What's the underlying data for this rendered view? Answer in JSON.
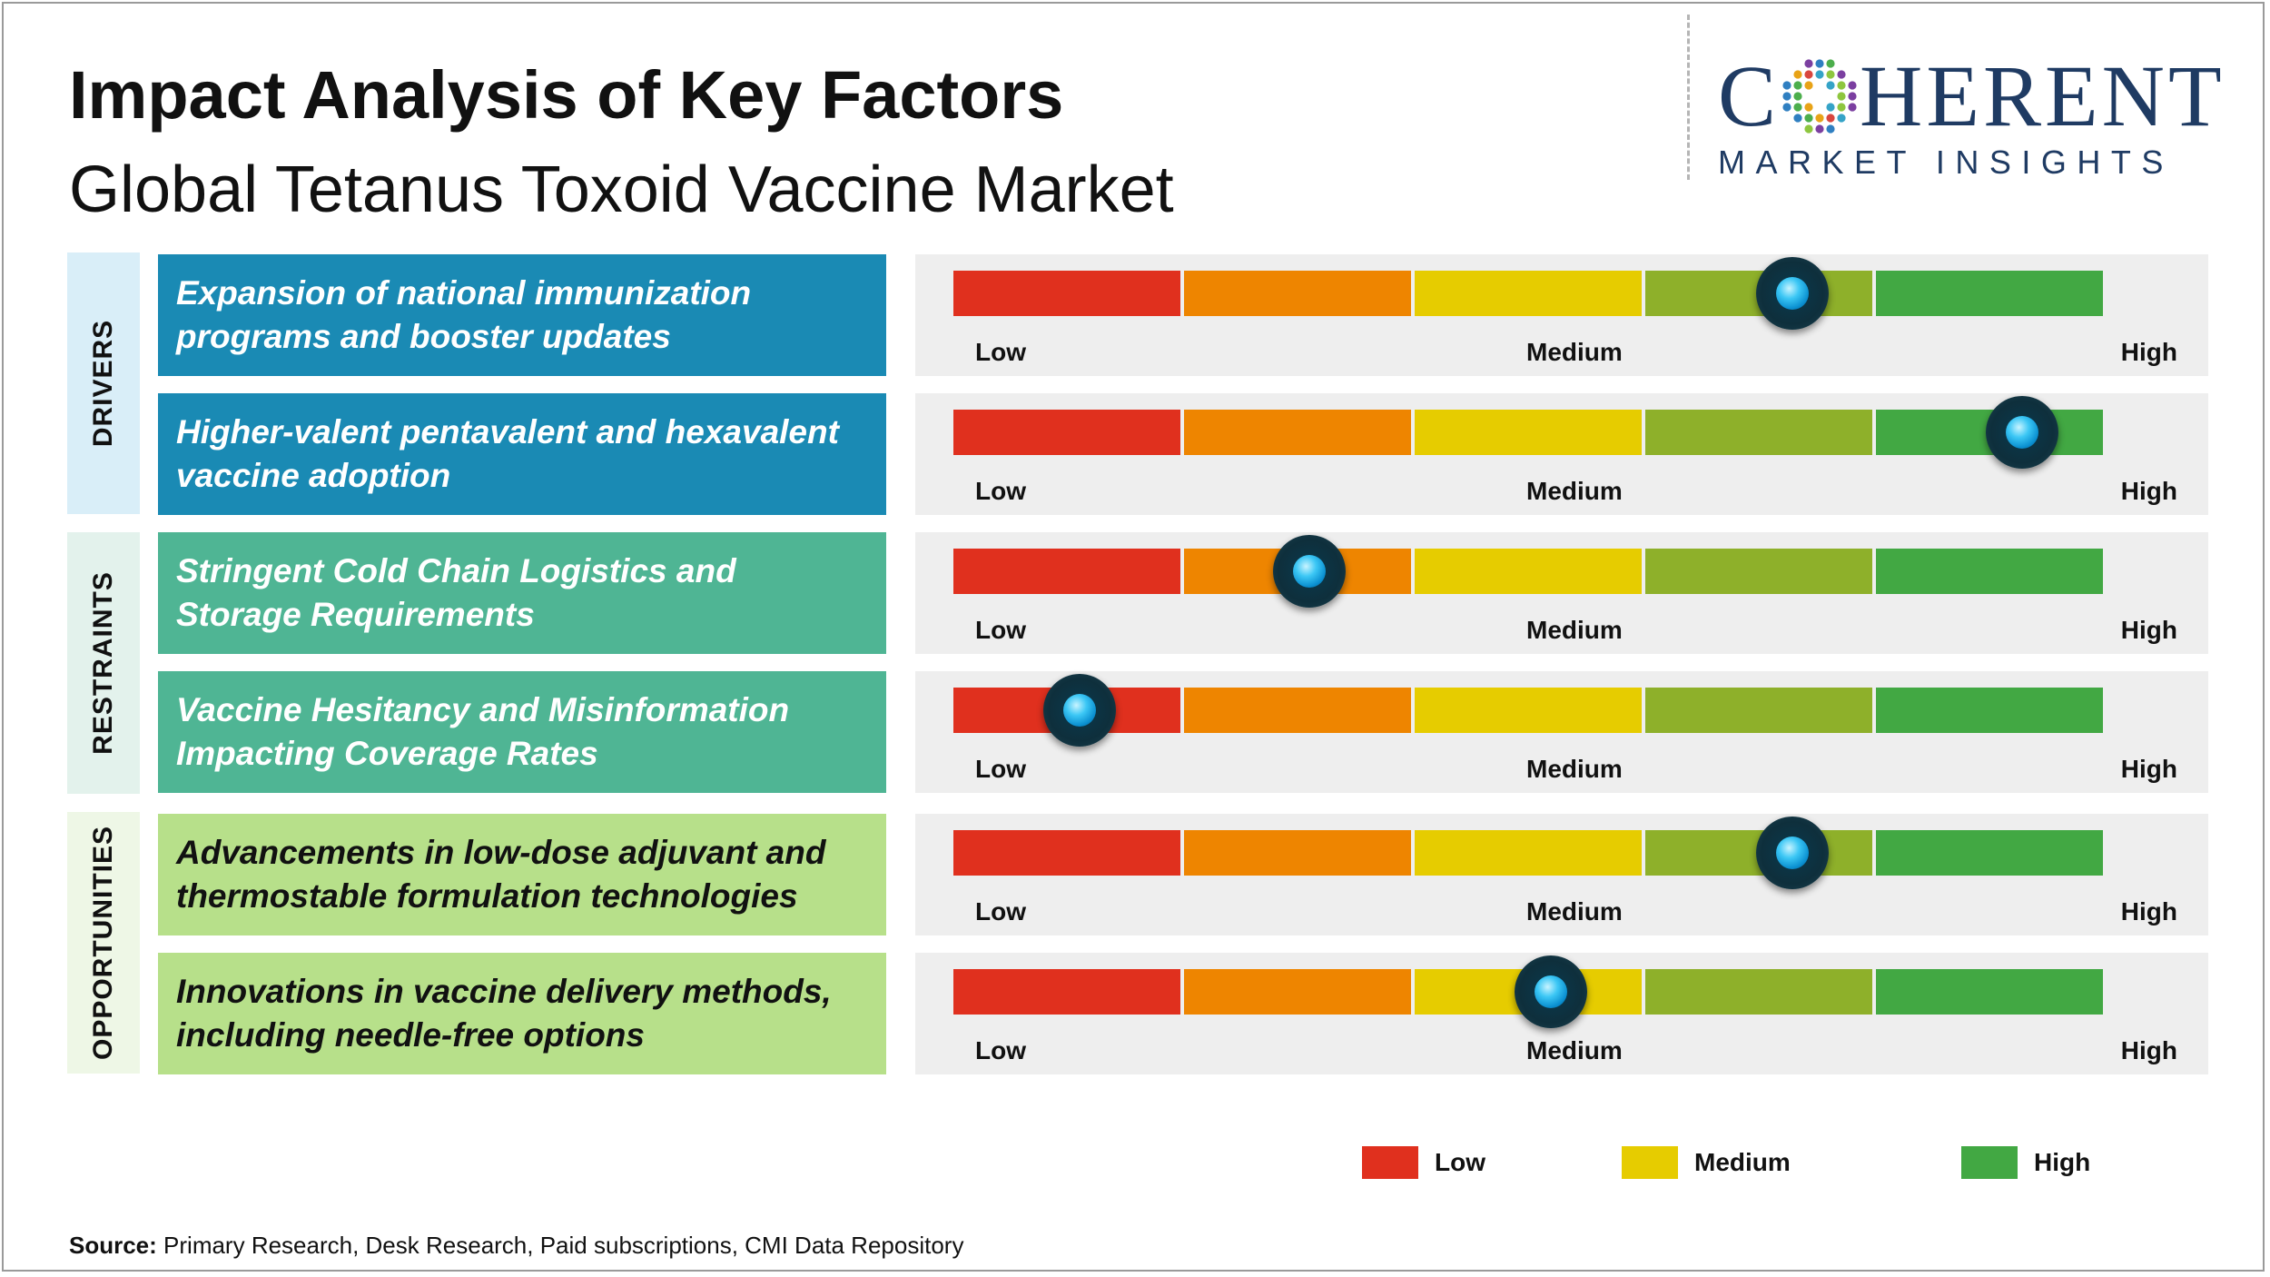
{
  "title": "Impact Analysis of Key Factors",
  "subtitle": "Global Tetanus Toxoid Vaccine Market",
  "logo": {
    "word_start": "C",
    "word_end": "HERENT",
    "tagline": "MARKET INSIGHTS",
    "color": "#1f3b63"
  },
  "scale_colors": [
    "#e0301e",
    "#ee8500",
    "#e6cc00",
    "#8eb02a",
    "#42a843"
  ],
  "groups": [
    {
      "label": "DRIVERS",
      "label_bg": "#d9eef8",
      "factor_bg": "#1a8ab4",
      "text_color": "#ffffff"
    },
    {
      "label": "RESTRAINTS",
      "label_bg": "#e3f2ec",
      "factor_bg": "#4fb594",
      "text_color": "#ffffff"
    },
    {
      "label": "OPPORTUNITIES",
      "label_bg": "#eef7e6",
      "factor_bg": "#b7e08a",
      "text_color": "#111111"
    }
  ],
  "chart_data": {
    "type": "table",
    "scale": [
      "Low",
      "Medium",
      "High"
    ],
    "rows": [
      {
        "group": "DRIVERS",
        "factor": "Expansion of national immunization programs and booster updates",
        "impact": 0.73,
        "low_label": "Low",
        "medium_label": "Medium",
        "high_label": "High"
      },
      {
        "group": "DRIVERS",
        "factor": "Higher-valent pentavalent and hexavalent vaccine adoption",
        "impact": 0.93,
        "low_label": "Low",
        "medium_label": "Medium",
        "high_label": "High"
      },
      {
        "group": "RESTRAINTS",
        "factor": "Stringent Cold Chain Logistics and Storage Requirements",
        "impact": 0.31,
        "low_label": "Low",
        "medium_label": "Medium",
        "high_label": "High"
      },
      {
        "group": "RESTRAINTS",
        "factor": "Vaccine Hesitancy and Misinformation Impacting Coverage Rates",
        "impact": 0.11,
        "low_label": "Low",
        "medium_label": "Medium",
        "high_label": "High"
      },
      {
        "group": "OPPORTUNITIES",
        "factor": "Advancements in low-dose adjuvant and thermostable formulation technologies",
        "impact": 0.73,
        "low_label": "Low",
        "medium_label": "Medium",
        "high_label": "High"
      },
      {
        "group": "OPPORTUNITIES",
        "factor": "Innovations in vaccine delivery methods, including needle-free options",
        "impact": 0.52,
        "low_label": "Low",
        "medium_label": "Medium",
        "high_label": "High"
      }
    ]
  },
  "legend": [
    {
      "label": "Low",
      "color": "#e0301e"
    },
    {
      "label": "Medium",
      "color": "#e6cc00"
    },
    {
      "label": "High",
      "color": "#42a843"
    }
  ],
  "source": {
    "prefix": "Source:",
    "text": " Primary Research, Desk Research, Paid subscriptions, CMI Data Repository"
  }
}
